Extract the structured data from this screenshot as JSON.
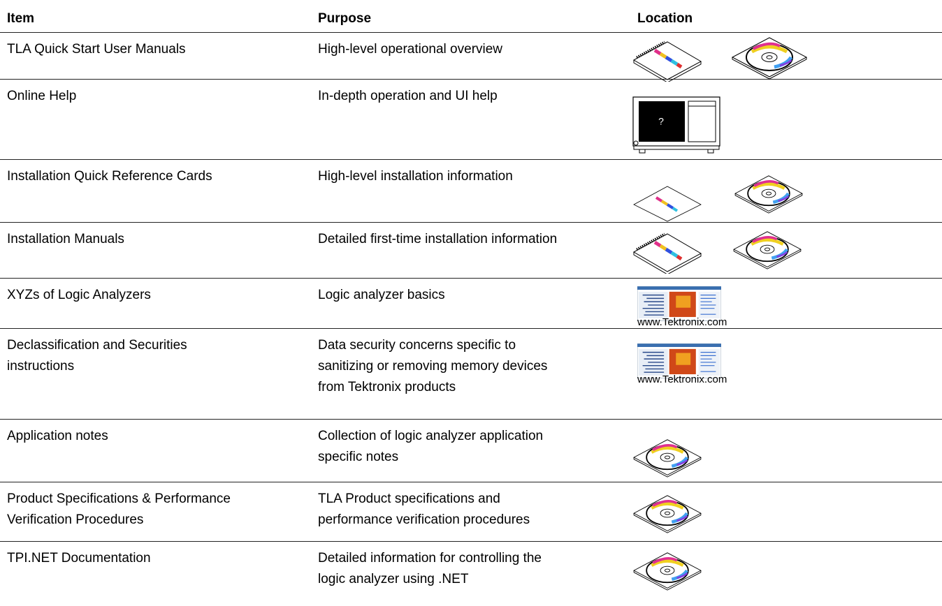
{
  "table": {
    "headers": [
      "Item",
      "Purpose",
      "Location"
    ],
    "rows": [
      {
        "item": [
          "TLA Quick Start User Manuals"
        ],
        "purpose": [
          "High-level operational overview"
        ]
      },
      {
        "item": [
          "Online Help"
        ],
        "purpose": [
          "In-depth operation and UI help"
        ],
        "icon_text": "?"
      },
      {
        "item": [
          "Installation Quick Reference Cards"
        ],
        "purpose": [
          "High-level installation information"
        ]
      },
      {
        "item": [
          "Installation Manuals"
        ],
        "purpose": [
          "Detailed first-time installation information"
        ]
      },
      {
        "item": [
          "XYZs of Logic Analyzers"
        ],
        "purpose": [
          "Logic analyzer basics"
        ],
        "caption": "www.Tektronix.com"
      },
      {
        "item": [
          "Declassification and Securities",
          "instructions"
        ],
        "purpose": [
          "Data security concerns specific to",
          "sanitizing or removing memory devices",
          "from Tektronix products"
        ],
        "caption": "www.Tektronix.com"
      },
      {
        "item": [
          "Application notes"
        ],
        "purpose": [
          "Collection of logic analyzer application",
          "specific notes"
        ]
      },
      {
        "item": [
          "Product Specifications & Performance",
          "Verification Procedures"
        ],
        "purpose": [
          "TLA Product specifications and",
          "performance verification procedures"
        ]
      },
      {
        "item": [
          "TPI.NET Documentation"
        ],
        "purpose": [
          "Detailed information for controlling the",
          "logic analyzer using .NET"
        ]
      }
    ]
  }
}
